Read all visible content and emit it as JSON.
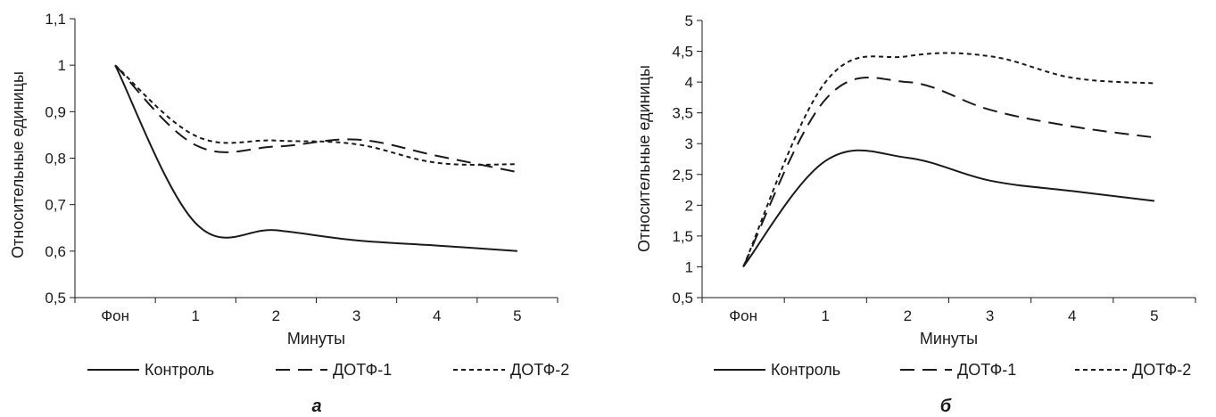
{
  "chart_data": [
    {
      "type": "line",
      "panel_label": "а",
      "xlabel": "Минуты",
      "ylabel": "Относительные единицы",
      "categories": [
        "Фон",
        "1",
        "2",
        "3",
        "4",
        "5"
      ],
      "ylim": [
        0.5,
        1.1
      ],
      "yticks": [
        "0,5",
        "0,6",
        "0,7",
        "0,8",
        "0,9",
        "1",
        "1,1"
      ],
      "grid": false,
      "legend_placement": "bottom",
      "series": [
        {
          "name": "Контроль",
          "style": "solid",
          "values": [
            1.0,
            0.66,
            0.645,
            0.623,
            0.612,
            0.6
          ]
        },
        {
          "name": "ДОТФ-1",
          "style": "long-dash",
          "values": [
            1.0,
            0.828,
            0.825,
            0.84,
            0.805,
            0.77
          ]
        },
        {
          "name": "ДОТФ-2",
          "style": "short-dash",
          "values": [
            1.0,
            0.848,
            0.838,
            0.83,
            0.79,
            0.787
          ]
        }
      ]
    },
    {
      "type": "line",
      "panel_label": "б",
      "xlabel": "Минуты",
      "ylabel": "Относительные единицы",
      "categories": [
        "Фон",
        "1",
        "2",
        "3",
        "4",
        "5"
      ],
      "ylim": [
        0.5,
        5
      ],
      "yticks": [
        "0,5",
        "1",
        "1,5",
        "2",
        "2,5",
        "3",
        "3,5",
        "4",
        "4,5",
        "5"
      ],
      "grid": false,
      "legend_placement": "bottom",
      "series": [
        {
          "name": "Контроль",
          "style": "solid",
          "values": [
            1.0,
            2.72,
            2.77,
            2.4,
            2.23,
            2.07
          ]
        },
        {
          "name": "ДОТФ-1",
          "style": "long-dash",
          "values": [
            1.0,
            3.72,
            4.0,
            3.55,
            3.28,
            3.1
          ]
        },
        {
          "name": "ДОТФ-2",
          "style": "short-dash",
          "values": [
            1.0,
            4.0,
            4.42,
            4.42,
            4.07,
            3.98
          ]
        }
      ]
    }
  ]
}
